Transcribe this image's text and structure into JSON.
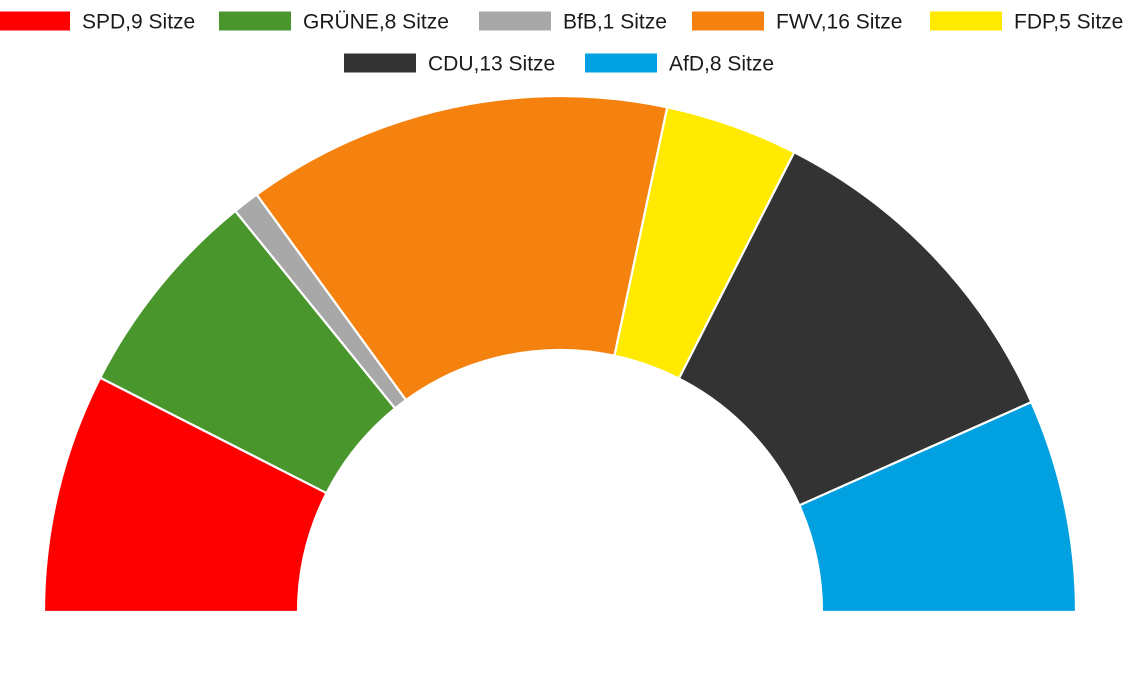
{
  "chart_data": {
    "type": "pie",
    "subtype": "semicircle-parliament",
    "unit": "Sitze",
    "total": 60,
    "direction": "left-to-right",
    "legend_position": "top",
    "slices": [
      {
        "name": "SPD",
        "label": "SPD,9 Sitze",
        "value": 9,
        "color": "#ff0000"
      },
      {
        "name": "GRÜNE",
        "label": "GRÜNE,8 Sitze",
        "value": 8,
        "color": "#48962c"
      },
      {
        "name": "BfB",
        "label": "BfB,1 Sitze",
        "value": 1,
        "color": "#a8a8a8"
      },
      {
        "name": "FWV",
        "label": "FWV,16 Sitze",
        "value": 16,
        "color": "#f5820f"
      },
      {
        "name": "FDP",
        "label": "FDP,5 Sitze",
        "value": 5,
        "color": "#ffea00"
      },
      {
        "name": "CDU",
        "label": "CDU,13 Sitze",
        "value": 13,
        "color": "#333333"
      },
      {
        "name": "AfD",
        "label": "AfD,8 Sitze",
        "value": 8,
        "color": "#00a0e1"
      }
    ]
  }
}
